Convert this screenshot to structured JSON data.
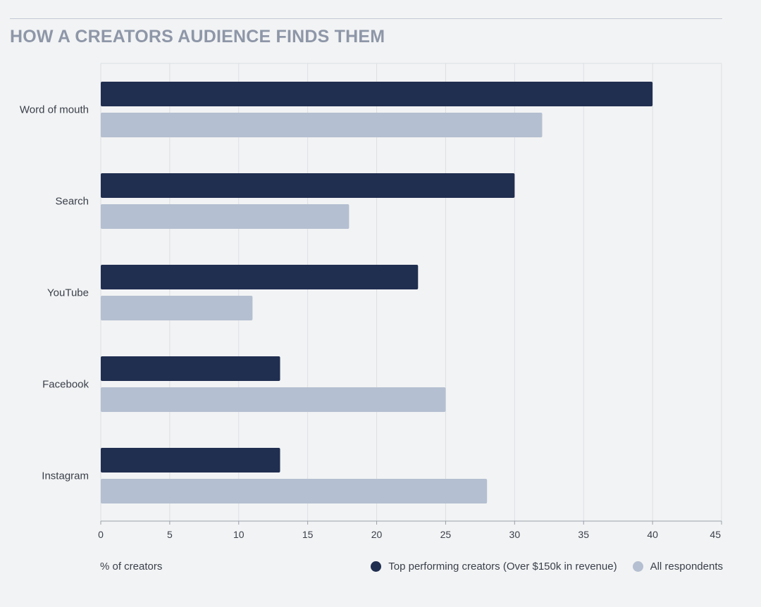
{
  "title": "HOW A CREATORS AUDIENCE FINDS THEM",
  "chart_data": {
    "type": "bar",
    "orientation": "horizontal",
    "title": "HOW A CREATORS AUDIENCE FINDS THEM",
    "categories": [
      "Word of mouth",
      "Search",
      "YouTube",
      "Facebook",
      "Instagram"
    ],
    "series": [
      {
        "name": "Top performing creators (Over $150k in revenue)",
        "color": "#202e50",
        "values": [
          40,
          30,
          23,
          13,
          13
        ]
      },
      {
        "name": "All respondents",
        "color": "#b4bfd1",
        "values": [
          32,
          18,
          11,
          25,
          28
        ]
      }
    ],
    "xlabel": "% of creators",
    "ylabel": "",
    "xlim": [
      0,
      45
    ],
    "xticks": [
      0,
      5,
      10,
      15,
      20,
      25,
      30,
      35,
      40,
      45
    ],
    "grid": true,
    "legend_position": "bottom-right"
  }
}
